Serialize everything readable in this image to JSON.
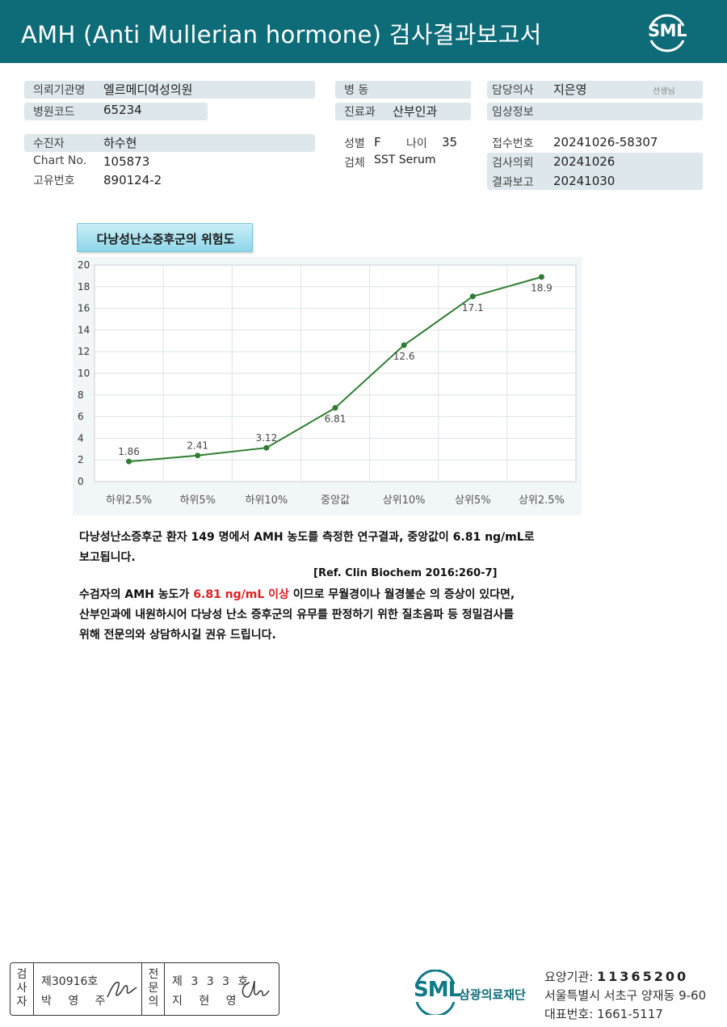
{
  "header": {
    "title": "AMH (Anti Mullerian hormone) 검사결과보고서",
    "logo_text": "SML"
  },
  "info": {
    "req_org_label": "의뢰기관명",
    "req_org_value": "엘르메디여성의원",
    "hosp_code_label": "병원코드",
    "hosp_code_value": "65234",
    "ward_label": "병 동",
    "ward_value": "",
    "dept_label": "진료과",
    "dept_value": "산부인과",
    "doctor_label": "담당의사",
    "doctor_value": "지은영",
    "doctor_suffix": "선생님",
    "clinical_label": "임상정보",
    "clinical_value": "",
    "patient_label": "수진자",
    "patient_value": "하수현",
    "chart_label": "Chart No.",
    "chart_value": "105873",
    "id_label": "고유번호",
    "id_value": "890124-2",
    "sex_label": "성별",
    "sex_value": "F",
    "age_label": "나이",
    "age_value": "35",
    "specimen_label": "검체",
    "specimen_value": "SST Serum",
    "receipt_label": "접수번호",
    "receipt_value": "20241026-58307",
    "request_label": "검사의뢰",
    "request_value": "20241026",
    "report_label": "결과보고",
    "report_value": "20241030"
  },
  "chart_title": "다낭성난소증후군의 위험도",
  "chart_data": {
    "type": "line",
    "title": "다낭성난소증후군의 위험도",
    "categories": [
      "하위2.5%",
      "하위5%",
      "하위10%",
      "중앙값",
      "상위10%",
      "상위5%",
      "상위2.5%"
    ],
    "series": [
      {
        "values": [
          1.86,
          2.41,
          3.12,
          6.81,
          12.6,
          17.1,
          18.9
        ],
        "labels": [
          "1.86",
          "2.41",
          "3.12",
          "6.81",
          "12.6",
          "17.1",
          "18.9"
        ],
        "color": "#2e7d32"
      }
    ],
    "yticks": [
      "0",
      "2",
      "4",
      "6",
      "8",
      "10",
      "12",
      "14",
      "16",
      "18",
      "20"
    ],
    "ylim": [
      0,
      20
    ],
    "grid": true,
    "xlabel": "",
    "ylabel": ""
  },
  "paragraphs": {
    "p1_line1": "다낭성난소증후군 환자 149 명에서 AMH 농도를 측정한 연구결과, 중앙값이 6.81 ng/mL로",
    "p1_line2": "보고됩니다.",
    "ref": "[Ref. Clin Biochem 2016:260-7]",
    "p2_line1_a": "수검자의 AMH 농도가 ",
    "p2_line1_red": "6.81 ng/mL 이상",
    "p2_line1_b": " 이므로 무월경이나 월경불순 의 증상이 있다면,",
    "p2_line2": "산부인과에 내원하시어 다낭성 난소 증후군의 유무를 판정하기 위한 질초음파 등 정밀검사를",
    "p2_line3": "위해 전문의와 상담하시길 권유 드립니다."
  },
  "signatures": {
    "tester_vertical": [
      "검",
      "사",
      "자"
    ],
    "tester_no": "제30916호",
    "tester_name": "박 영 주",
    "specialist_vertical": [
      "전",
      "문",
      "의"
    ],
    "specialist_no": "제 3 3 3 호",
    "specialist_name": "지 현 영"
  },
  "footer": {
    "logo_text": "SML",
    "org_name": "삼광의료재단",
    "care_label": "요양기관: ",
    "care_no": "11365200",
    "address": "서울특별시 서초구 양재동 9-60",
    "phone_label": "대표번호: ",
    "phone": "1661-5117"
  }
}
